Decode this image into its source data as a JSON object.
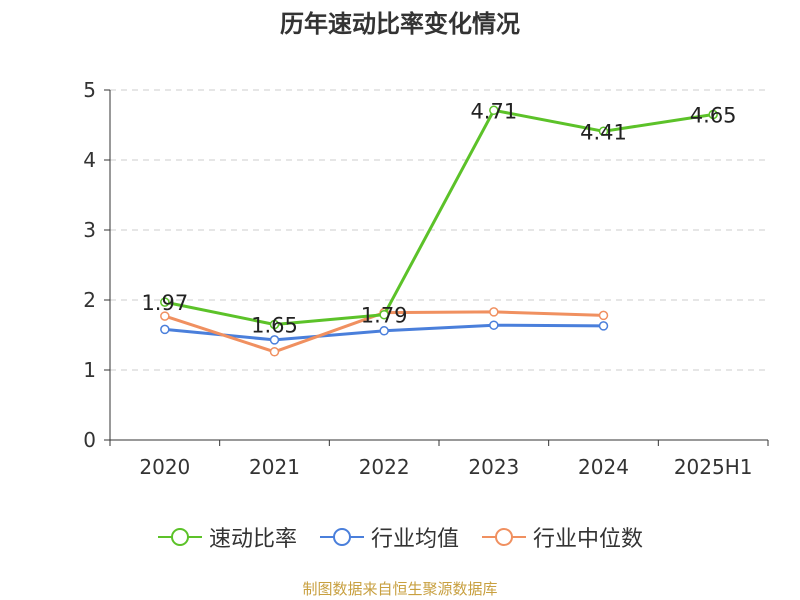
{
  "chart_data": {
    "type": "line",
    "title": "历年速动比率变化情况",
    "xlabel": "",
    "ylabel": "",
    "categories": [
      "2020",
      "2021",
      "2022",
      "2023",
      "2024",
      "2025H1"
    ],
    "ylim": [
      0,
      5
    ],
    "yticks": [
      0,
      1,
      2,
      3,
      4,
      5
    ],
    "grid": "horizontal-dashed",
    "legend_position": "bottom",
    "series": [
      {
        "name": "速动比率",
        "color": "#5cc229",
        "values": [
          1.97,
          1.65,
          1.79,
          4.71,
          4.41,
          4.65
        ],
        "labels": [
          "1.97",
          "1.65",
          "1.79",
          "4.71",
          "4.41",
          "4.65"
        ]
      },
      {
        "name": "行业均值",
        "color": "#4a7fdb",
        "values": [
          1.58,
          1.43,
          1.56,
          1.64,
          1.63,
          null
        ]
      },
      {
        "name": "行业中位数",
        "color": "#f09060",
        "values": [
          1.77,
          1.26,
          1.82,
          1.83,
          1.78,
          null
        ]
      }
    ]
  },
  "source_note": "制图数据来自恒生聚源数据库"
}
